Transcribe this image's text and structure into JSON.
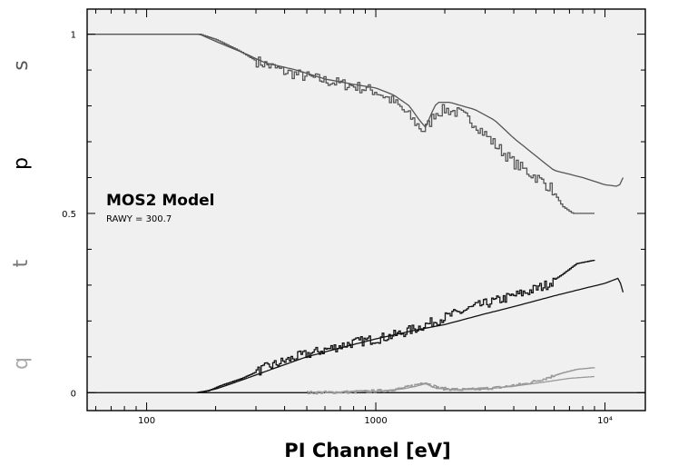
{
  "chart_data": {
    "type": "line",
    "title": "",
    "xlabel": "PI Channel [eV]",
    "ylabel": "",
    "xscale": "log",
    "xlim": [
      55,
      15000
    ],
    "ylim": [
      -0.05,
      1.07
    ],
    "x_ticks": [
      {
        "value": 100,
        "label": "100"
      },
      {
        "value": 1000,
        "label": "1000"
      },
      {
        "value": 10000,
        "label": "10⁴"
      }
    ],
    "y_ticks": [
      {
        "value": 0,
        "label": "0"
      },
      {
        "value": 0.5,
        "label": "0.5"
      },
      {
        "value": 1,
        "label": "1"
      }
    ],
    "annotation": {
      "title": "MOS2 Model",
      "subtitle": "RAWY = 300.7"
    },
    "side_letters": [
      {
        "text": "s",
        "color": "#555555"
      },
      {
        "text": "p",
        "color": "#000000"
      },
      {
        "text": "t",
        "color": "#777777"
      },
      {
        "text": "q",
        "color": "#a8a8a8"
      }
    ],
    "series": [
      {
        "color": "#555555",
        "style": "step",
        "noise": 0.016,
        "points": [
          [
            55,
            1.0
          ],
          [
            170,
            1.0
          ],
          [
            200,
            0.985
          ],
          [
            250,
            0.955
          ],
          [
            300,
            0.925
          ],
          [
            400,
            0.895
          ],
          [
            600,
            0.87
          ],
          [
            800,
            0.855
          ],
          [
            1000,
            0.84
          ],
          [
            1200,
            0.81
          ],
          [
            1400,
            0.77
          ],
          [
            1600,
            0.73
          ],
          [
            1700,
            0.75
          ],
          [
            1800,
            0.78
          ],
          [
            2000,
            0.79
          ],
          [
            2300,
            0.78
          ],
          [
            2700,
            0.75
          ],
          [
            3200,
            0.7
          ],
          [
            4000,
            0.64
          ],
          [
            5000,
            0.6
          ],
          [
            5800,
            0.57
          ],
          [
            6500,
            0.52
          ],
          [
            7200,
            0.5
          ],
          [
            9000,
            0.5
          ]
        ]
      },
      {
        "color": "#555555",
        "style": "line",
        "noise": 0,
        "points": [
          [
            55,
            1.0
          ],
          [
            170,
            1.0
          ],
          [
            200,
            0.98
          ],
          [
            260,
            0.95
          ],
          [
            330,
            0.92
          ],
          [
            450,
            0.9
          ],
          [
            600,
            0.875
          ],
          [
            800,
            0.86
          ],
          [
            1000,
            0.85
          ],
          [
            1200,
            0.83
          ],
          [
            1400,
            0.8
          ],
          [
            1550,
            0.76
          ],
          [
            1650,
            0.74
          ],
          [
            1750,
            0.78
          ],
          [
            1850,
            0.81
          ],
          [
            2100,
            0.81
          ],
          [
            2700,
            0.79
          ],
          [
            3300,
            0.76
          ],
          [
            4000,
            0.71
          ],
          [
            5000,
            0.66
          ],
          [
            6000,
            0.62
          ],
          [
            8000,
            0.6
          ],
          [
            10000,
            0.58
          ],
          [
            11500,
            0.575
          ],
          [
            12000,
            0.6
          ]
        ]
      },
      {
        "color": "#111111",
        "style": "step",
        "noise": 0.014,
        "points": [
          [
            165,
            0.0
          ],
          [
            185,
            0.005
          ],
          [
            210,
            0.02
          ],
          [
            260,
            0.04
          ],
          [
            330,
            0.07
          ],
          [
            450,
            0.1
          ],
          [
            600,
            0.12
          ],
          [
            800,
            0.14
          ],
          [
            1000,
            0.15
          ],
          [
            1200,
            0.16
          ],
          [
            1500,
            0.18
          ],
          [
            2000,
            0.21
          ],
          [
            2700,
            0.24
          ],
          [
            3500,
            0.26
          ],
          [
            4500,
            0.28
          ],
          [
            5500,
            0.3
          ],
          [
            6500,
            0.33
          ],
          [
            7500,
            0.36
          ],
          [
            9000,
            0.37
          ]
        ]
      },
      {
        "color": "#111111",
        "style": "line",
        "noise": 0,
        "points": [
          [
            165,
            0.0
          ],
          [
            200,
            0.01
          ],
          [
            260,
            0.035
          ],
          [
            350,
            0.065
          ],
          [
            500,
            0.1
          ],
          [
            700,
            0.125
          ],
          [
            1000,
            0.15
          ],
          [
            1500,
            0.175
          ],
          [
            2000,
            0.19
          ],
          [
            3000,
            0.22
          ],
          [
            4000,
            0.24
          ],
          [
            6000,
            0.27
          ],
          [
            8000,
            0.29
          ],
          [
            10000,
            0.305
          ],
          [
            11500,
            0.32
          ],
          [
            12000,
            0.28
          ]
        ]
      },
      {
        "color": "#999999",
        "style": "step",
        "noise": 0.004,
        "points": [
          [
            500,
            0.0
          ],
          [
            800,
            0.002
          ],
          [
            1100,
            0.006
          ],
          [
            1300,
            0.012
          ],
          [
            1500,
            0.022
          ],
          [
            1620,
            0.03
          ],
          [
            1750,
            0.02
          ],
          [
            1900,
            0.012
          ],
          [
            2300,
            0.008
          ],
          [
            2800,
            0.01
          ],
          [
            3500,
            0.015
          ],
          [
            4500,
            0.025
          ],
          [
            5500,
            0.04
          ],
          [
            6500,
            0.055
          ],
          [
            7500,
            0.065
          ],
          [
            9000,
            0.07
          ]
        ]
      },
      {
        "color": "#999999",
        "style": "line",
        "noise": 0,
        "points": [
          [
            600,
            0.0
          ],
          [
            1000,
            0.004
          ],
          [
            1300,
            0.01
          ],
          [
            1500,
            0.018
          ],
          [
            1650,
            0.025
          ],
          [
            1800,
            0.014
          ],
          [
            2200,
            0.008
          ],
          [
            3000,
            0.01
          ],
          [
            4000,
            0.018
          ],
          [
            5500,
            0.03
          ],
          [
            7000,
            0.04
          ],
          [
            9000,
            0.045
          ]
        ]
      }
    ]
  }
}
